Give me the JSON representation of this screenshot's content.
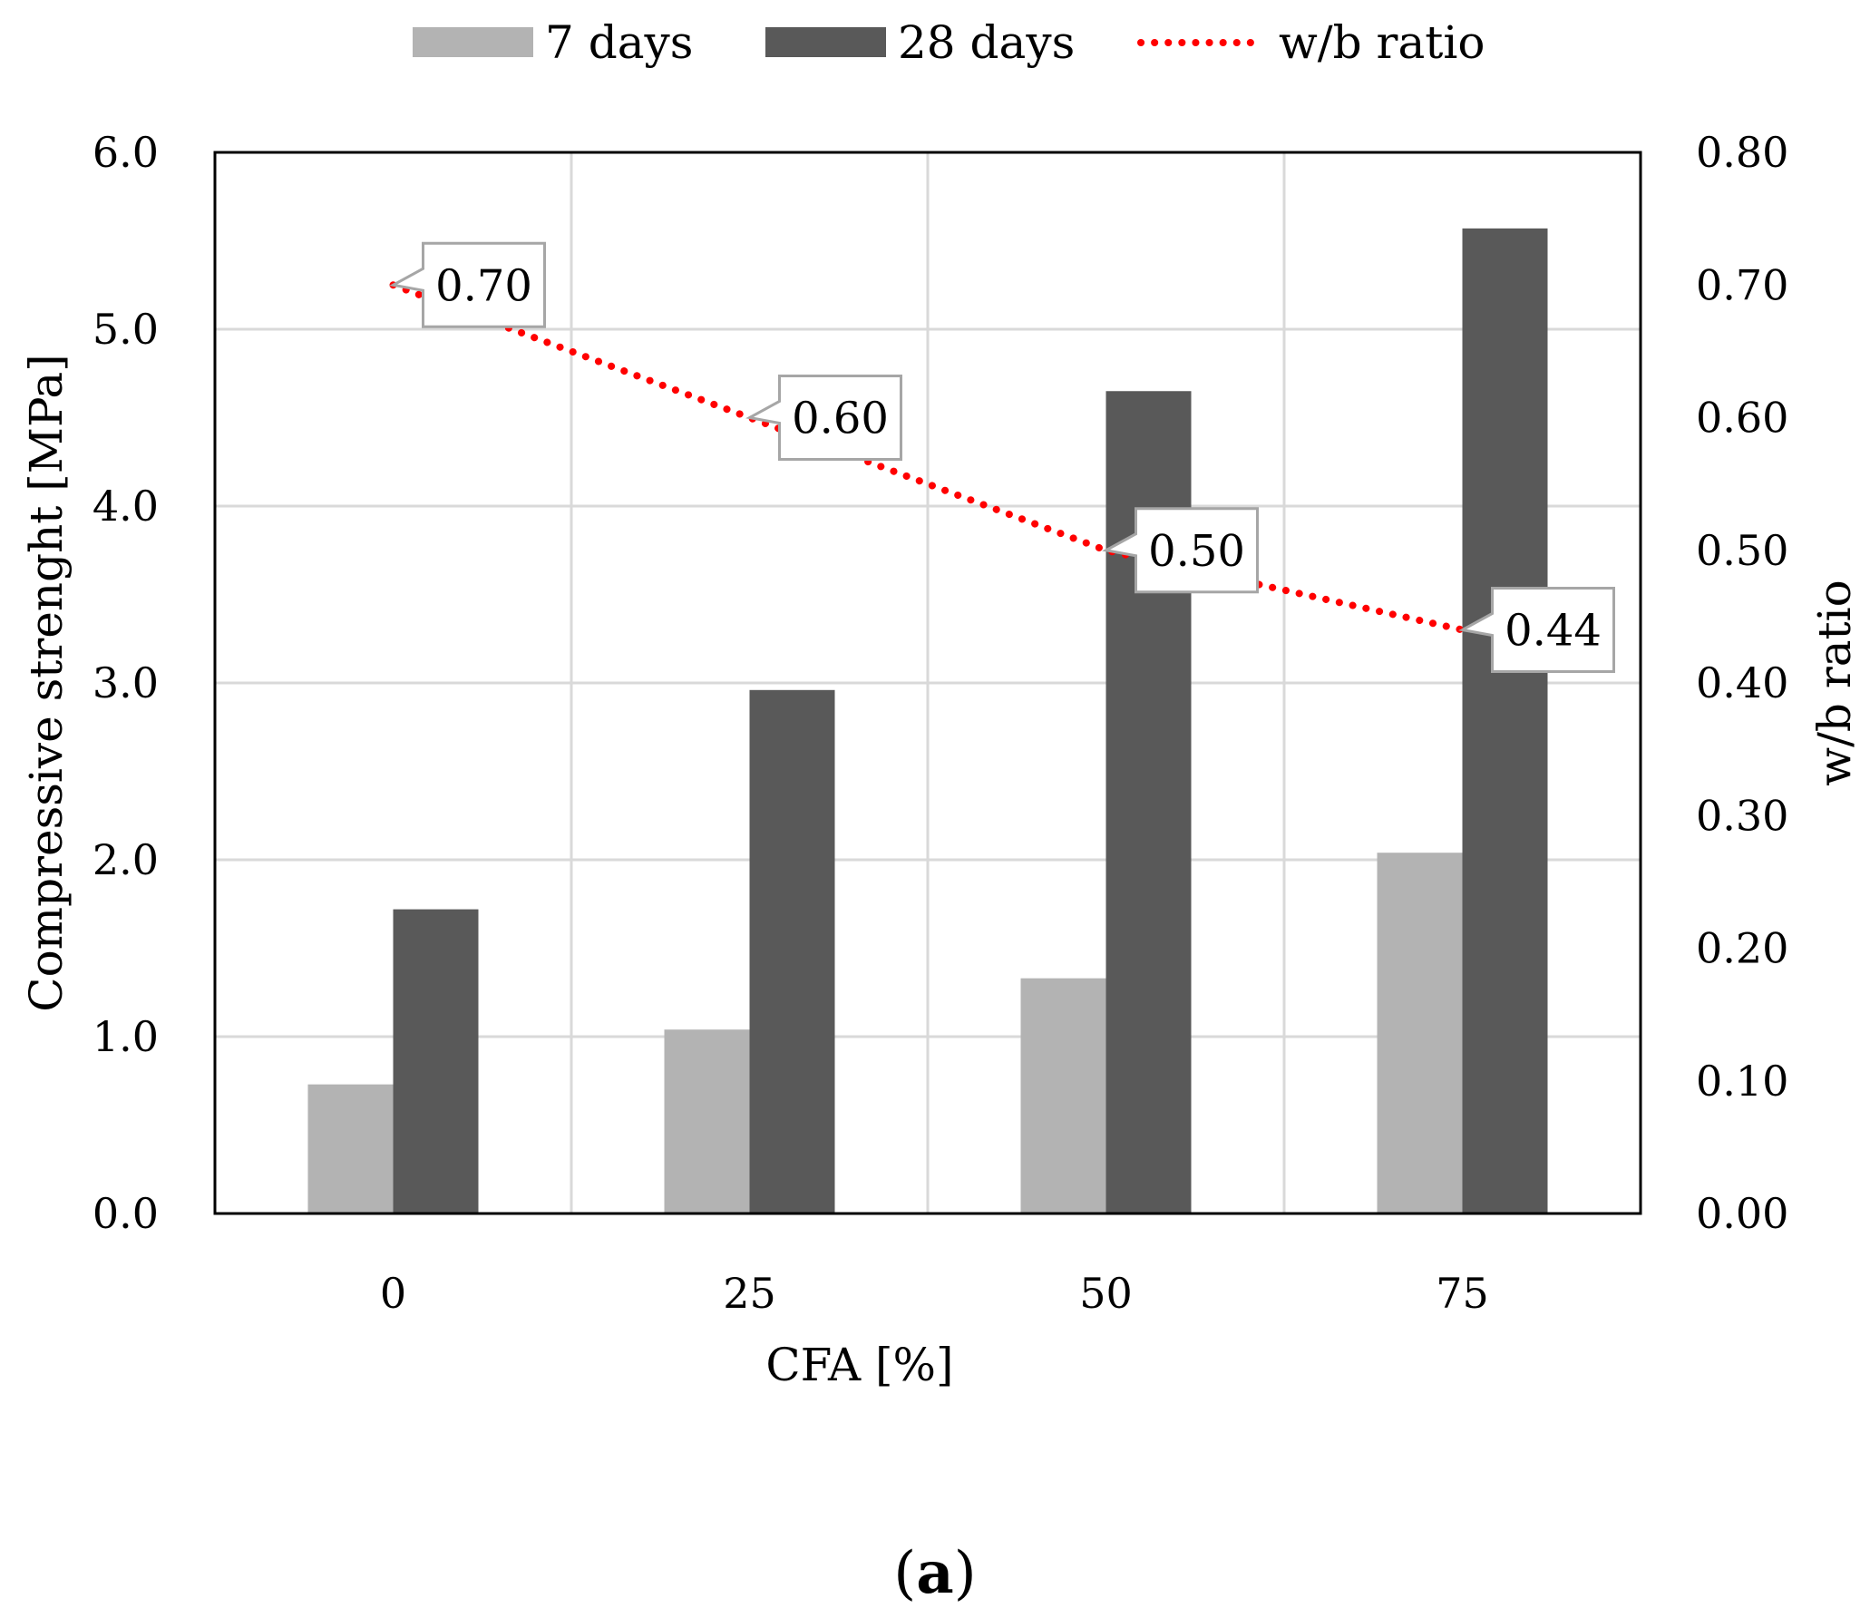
{
  "chart_data": {
    "type": "bar",
    "categories": [
      "0",
      "25",
      "50",
      "75"
    ],
    "series": [
      {
        "name": "7 days",
        "values": [
          0.73,
          1.04,
          1.33,
          2.04
        ],
        "color": "#b3b3b3"
      },
      {
        "name": "28 days",
        "values": [
          1.72,
          2.96,
          4.65,
          5.57
        ],
        "color": "#595959"
      }
    ],
    "line_series": {
      "name": "w/b ratio",
      "axis": "right",
      "values": [
        0.7,
        0.6,
        0.5,
        0.44
      ],
      "labels": [
        "0.70",
        "0.60",
        "0.50",
        "0.44"
      ],
      "color": "#ff0000",
      "style": "dotted"
    },
    "xlabel": "CFA [%]",
    "ylabel": "Compressive strenght [MPa]",
    "y2label": "w/b ratio",
    "ylim": [
      0,
      6
    ],
    "y2lim": [
      0,
      0.8
    ],
    "yticks": [
      "0.0",
      "1.0",
      "2.0",
      "3.0",
      "4.0",
      "5.0",
      "6.0"
    ],
    "y2ticks": [
      "0.00",
      "0.10",
      "0.20",
      "0.30",
      "0.40",
      "0.50",
      "0.60",
      "0.70",
      "0.80"
    ],
    "grid": true,
    "legend_position": "top"
  },
  "panel_label": "a"
}
